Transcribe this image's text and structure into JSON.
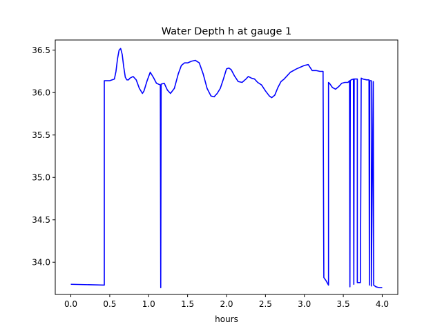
{
  "chart_data": {
    "type": "line",
    "title": "Water Depth h at gauge 1",
    "xlabel": "hours",
    "ylabel": "",
    "xlim": [
      -0.2,
      4.2
    ],
    "ylim": [
      33.62,
      36.62
    ],
    "xticks": [
      0.0,
      0.5,
      1.0,
      1.5,
      2.0,
      2.5,
      3.0,
      3.5,
      4.0
    ],
    "xtick_labels": [
      "0.0",
      "0.5",
      "1.0",
      "1.5",
      "2.0",
      "2.5",
      "3.0",
      "3.5",
      "4.0"
    ],
    "yticks": [
      34.0,
      34.5,
      35.0,
      35.5,
      36.0,
      36.5
    ],
    "ytick_labels": [
      "34.0",
      "34.5",
      "35.0",
      "35.5",
      "36.0",
      "36.5"
    ],
    "grid": false,
    "series": [
      {
        "color": "#0000ff",
        "x": [
          0.0,
          0.43,
          0.43,
          0.5,
          0.56,
          0.58,
          0.6,
          0.62,
          0.64,
          0.66,
          0.68,
          0.7,
          0.72,
          0.74,
          0.76,
          0.8,
          0.84,
          0.88,
          0.92,
          0.94,
          0.98,
          1.02,
          1.06,
          1.1,
          1.15,
          1.155,
          1.16,
          1.2,
          1.24,
          1.28,
          1.33,
          1.38,
          1.42,
          1.46,
          1.5,
          1.55,
          1.6,
          1.65,
          1.7,
          1.75,
          1.8,
          1.84,
          1.88,
          1.92,
          1.96,
          2.0,
          2.03,
          2.06,
          2.1,
          2.15,
          2.2,
          2.25,
          2.28,
          2.32,
          2.36,
          2.4,
          2.45,
          2.5,
          2.55,
          2.58,
          2.62,
          2.66,
          2.7,
          2.74,
          2.78,
          2.82,
          2.86,
          2.9,
          2.95,
          3.0,
          3.05,
          3.1,
          3.15,
          3.2,
          3.24,
          3.25,
          3.28,
          3.31,
          3.31,
          3.33,
          3.36,
          3.4,
          3.44,
          3.48,
          3.52,
          3.56,
          3.58,
          3.585,
          3.59,
          3.6,
          3.63,
          3.635,
          3.64,
          3.66,
          3.68,
          3.68,
          3.72,
          3.73,
          3.75,
          3.8,
          3.83,
          3.835,
          3.84,
          3.86,
          3.86,
          3.885,
          3.89,
          3.92,
          3.96,
          4.0
        ],
        "values": [
          33.74,
          33.73,
          36.14,
          36.14,
          36.16,
          36.25,
          36.4,
          36.5,
          36.52,
          36.45,
          36.3,
          36.18,
          36.15,
          36.15,
          36.17,
          36.19,
          36.15,
          36.05,
          35.99,
          36.02,
          36.14,
          36.24,
          36.18,
          36.11,
          36.09,
          33.7,
          36.1,
          36.11,
          36.03,
          35.99,
          36.05,
          36.22,
          36.32,
          36.35,
          36.35,
          36.37,
          36.38,
          36.35,
          36.22,
          36.05,
          35.96,
          35.95,
          35.99,
          36.05,
          36.16,
          36.28,
          36.29,
          36.27,
          36.2,
          36.13,
          36.12,
          36.16,
          36.19,
          36.17,
          36.16,
          36.12,
          36.09,
          36.02,
          35.96,
          35.94,
          35.97,
          36.06,
          36.13,
          36.16,
          36.2,
          36.24,
          36.26,
          36.28,
          36.3,
          36.32,
          36.33,
          36.26,
          36.26,
          36.25,
          36.25,
          33.82,
          33.78,
          33.73,
          36.12,
          36.1,
          36.06,
          36.04,
          36.07,
          36.11,
          36.12,
          36.12,
          36.14,
          33.71,
          36.14,
          36.15,
          36.16,
          33.74,
          36.16,
          36.16,
          36.16,
          33.76,
          33.76,
          36.17,
          36.16,
          36.15,
          36.15,
          33.73,
          36.14,
          36.14,
          33.72,
          36.13,
          33.73,
          33.71,
          33.7,
          33.7
        ]
      }
    ]
  }
}
